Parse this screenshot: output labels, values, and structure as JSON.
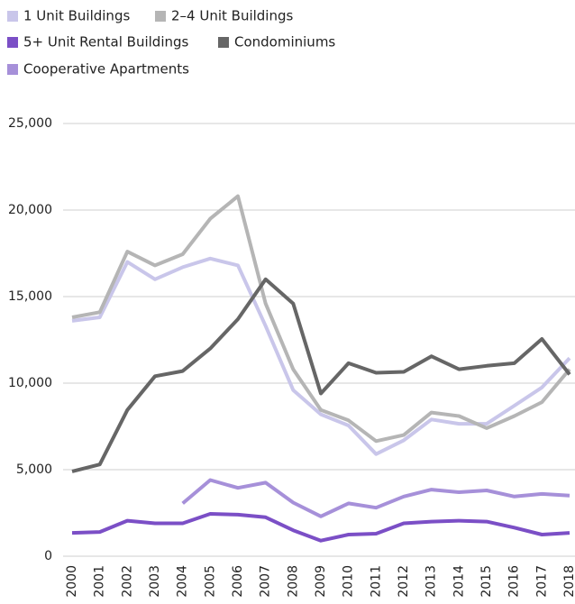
{
  "chart_data": {
    "type": "line",
    "categories": [
      "2000",
      "2001",
      "2002",
      "2003",
      "2004",
      "2005",
      "2006",
      "2007",
      "2008",
      "2009",
      "2010",
      "2011",
      "2012",
      "2013",
      "2014",
      "2015",
      "2016",
      "2017",
      "2018"
    ],
    "series": [
      {
        "name": "1 Unit Buildings",
        "color": "#c9c6ea",
        "values": [
          13600,
          13800,
          17000,
          16000,
          16700,
          17200,
          16800,
          13300,
          9600,
          8200,
          7550,
          5900,
          6700,
          7900,
          7650,
          7650,
          8700,
          9750,
          11450
        ]
      },
      {
        "name": "2–4 Unit Buildings",
        "color": "#b5b5b5",
        "values": [
          13800,
          14100,
          17600,
          16800,
          17450,
          19500,
          20800,
          14600,
          10800,
          8450,
          7850,
          6650,
          7000,
          8300,
          8100,
          7400,
          8100,
          8900,
          10800
        ]
      },
      {
        "name": "5+ Unit Rental Buildings",
        "color": "#7b4fc6",
        "values": [
          1350,
          1400,
          2050,
          1900,
          1900,
          2450,
          2400,
          2250,
          1500,
          900,
          1250,
          1300,
          1900,
          2000,
          2050,
          2000,
          1650,
          1250,
          1350
        ]
      },
      {
        "name": "Condominiums",
        "color": "#666666",
        "values": [
          4900,
          5300,
          8450,
          10400,
          10700,
          12000,
          13700,
          16000,
          14600,
          9400,
          11150,
          10600,
          10650,
          11550,
          10800,
          11000,
          11150,
          12550,
          10500
        ]
      },
      {
        "name": "Cooperative Apartments",
        "color": "#a690d9",
        "values": [
          null,
          null,
          null,
          null,
          3050,
          4400,
          3950,
          4250,
          3100,
          2300,
          3050,
          2800,
          3450,
          3850,
          3700,
          3800,
          3450,
          3600,
          3500
        ]
      }
    ],
    "ylim": [
      0,
      25000
    ],
    "yticks": [
      0,
      {
        "value": 5000,
        "label": "5,000"
      },
      {
        "value": 10000,
        "label": "10,000"
      },
      {
        "value": 15000,
        "label": "15,000"
      },
      {
        "value": 20000,
        "label": "20,000"
      },
      {
        "value": 25000,
        "label": "25,000"
      }
    ],
    "grid": true
  }
}
